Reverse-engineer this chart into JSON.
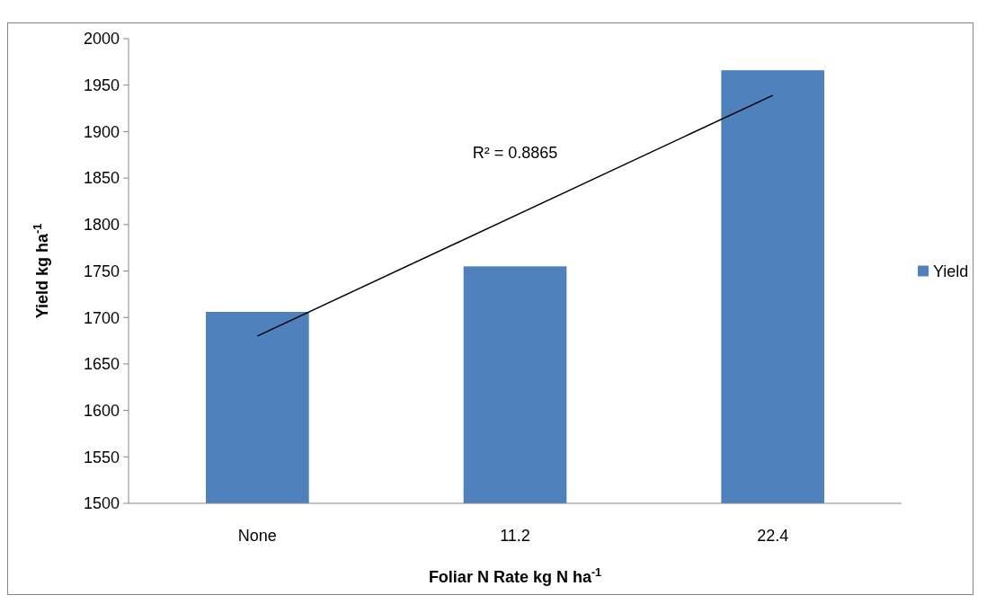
{
  "chart_data": {
    "type": "bar",
    "xlabel": "Foliar N Rate kg N ha$^{-1}$",
    "ylabel": "Yield kg ha$^{-1}$",
    "categories": [
      "None",
      "11.2",
      "22.4"
    ],
    "series": [
      {
        "name": "Yield",
        "color": "#4f81bd",
        "values": [
          1706,
          1755,
          1966
        ]
      },
      {
        "type": "line",
        "color": "#000000",
        "x": [
          "None",
          "22.4"
        ],
        "values": [
          1680,
          1939
        ]
      }
    ],
    "annotations": [
      "R² = 0.8865"
    ],
    "ylim": [
      1500,
      2000
    ],
    "yticks": [
      1500,
      1550,
      1600,
      1650,
      1700,
      1750,
      1800,
      1850,
      1900,
      1950,
      2000
    ],
    "grid": false,
    "legend": "right"
  }
}
